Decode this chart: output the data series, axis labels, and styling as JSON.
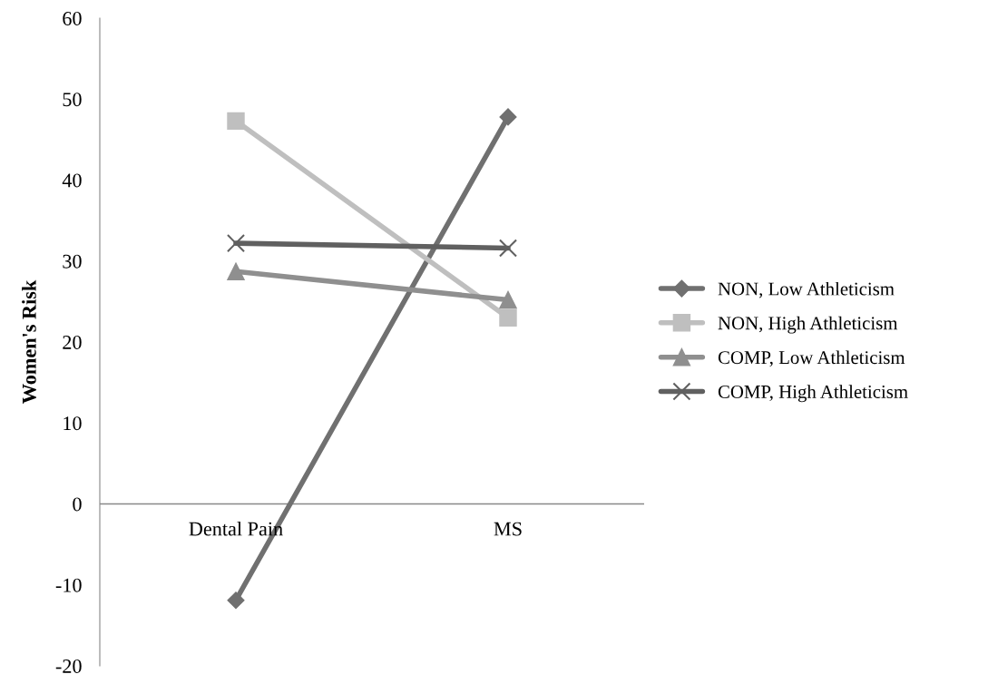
{
  "chart_data": {
    "type": "line",
    "ylabel": "Women's Risk",
    "categories": [
      "Dental Pain",
      "MS"
    ],
    "series": [
      {
        "name": "NON, Low Athleticism",
        "color": "#707070",
        "marker": "diamond",
        "values": [
          -11.9,
          47.8
        ]
      },
      {
        "name": "NON, High Athleticism",
        "color": "#bfbfbf",
        "marker": "square",
        "values": [
          47.3,
          23.0
        ]
      },
      {
        "name": "COMP, Low Athleticism",
        "color": "#8f8f8f",
        "marker": "triangle",
        "values": [
          28.7,
          25.2
        ]
      },
      {
        "name": "COMP, High Athleticism",
        "color": "#606060",
        "marker": "cross",
        "values": [
          32.2,
          31.6
        ]
      }
    ],
    "ylim": [
      -20,
      60
    ],
    "yticks": [
      -20,
      -10,
      0,
      10,
      20,
      30,
      40,
      50,
      60
    ],
    "grid": false,
    "legend": "right"
  }
}
